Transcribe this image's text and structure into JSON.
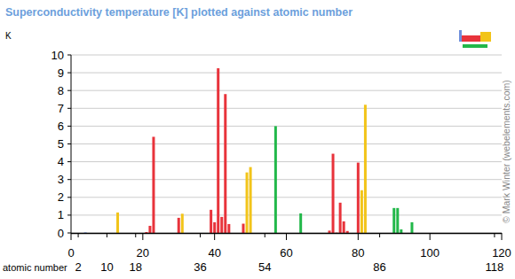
{
  "chart_data": {
    "type": "bar",
    "title": "Superconductivity temperature [K] plotted against atomic number",
    "y_label": "K",
    "x_label": "atomic number",
    "credit": "© Mark Winter (webelements.com)",
    "x": [
      4,
      13,
      21,
      22,
      23,
      30,
      31,
      39,
      40,
      41,
      42,
      43,
      44,
      48,
      49,
      50,
      57,
      64,
      72,
      73,
      74,
      75,
      76,
      77,
      80,
      81,
      82,
      90,
      91,
      92,
      95
    ],
    "values": [
      0.03,
      1.15,
      0.05,
      0.4,
      5.4,
      0.85,
      1.08,
      1.3,
      0.6,
      9.25,
      0.9,
      7.8,
      0.5,
      0.52,
      3.4,
      3.7,
      6.0,
      1.1,
      0.13,
      4.45,
      0.02,
      1.7,
      0.65,
      0.11,
      3.95,
      2.4,
      7.2,
      1.4,
      1.4,
      0.2,
      0.6
    ],
    "colors": [
      "#6f8fdc",
      "#f2c419",
      "#e8333b",
      "#e8333b",
      "#e8333b",
      "#e8333b",
      "#f2c419",
      "#e8333b",
      "#e8333b",
      "#e8333b",
      "#e8333b",
      "#e8333b",
      "#e8333b",
      "#e8333b",
      "#f2c419",
      "#f2c419",
      "#22b84a",
      "#22b84a",
      "#e8333b",
      "#e8333b",
      "#e8333b",
      "#e8333b",
      "#e8333b",
      "#e8333b",
      "#e8333b",
      "#f2c419",
      "#f2c419",
      "#22b84a",
      "#22b84a",
      "#22b84a",
      "#22b84a"
    ],
    "xlim": [
      0,
      120
    ],
    "xticks": [
      0,
      20,
      40,
      60,
      80,
      100,
      120
    ],
    "noble_gas_ticks": [
      2,
      10,
      18,
      36,
      54,
      86,
      118
    ],
    "ylim": [
      0,
      10
    ],
    "yticks": [
      0,
      1,
      2,
      3,
      4,
      5,
      6,
      7,
      8,
      9,
      10
    ],
    "grid": true
  }
}
